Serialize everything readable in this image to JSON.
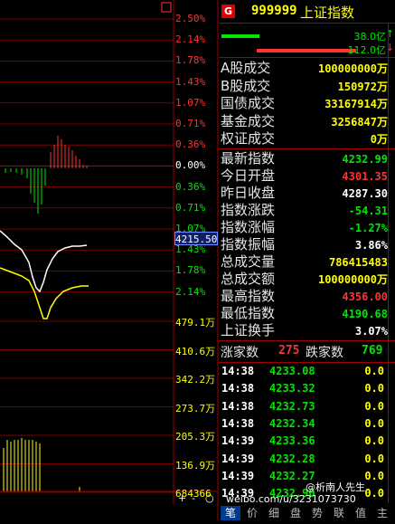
{
  "axis_percent": [
    "2.50%",
    "2.14%",
    "1.78%",
    "1.43%",
    "1.07%",
    "0.71%",
    "0.36%",
    "0.00%",
    "0.36%",
    "0.71%",
    "1.07%",
    "1.43%",
    "1.78%",
    "2.14%"
  ],
  "axis_volume": [
    "479.1万",
    "410.6万",
    "342.2万",
    "273.7万",
    "205.3万",
    "136.9万",
    "684366"
  ],
  "crosshair_value": "4215.50",
  "bottom_buttons": {
    "plus": "+",
    "minus": "-",
    "circle": "○"
  },
  "header": {
    "badge": "G",
    "code": "999999",
    "name": "上证指数"
  },
  "bars": {
    "up_label": "38.0亿",
    "down_label": "112.0亿",
    "up_arrow": "↑",
    "down_arrow": "↓"
  },
  "turnover": [
    {
      "label": "A股成交",
      "value": "100000000万"
    },
    {
      "label": "B股成交",
      "value": "150972万"
    },
    {
      "label": "国债成交",
      "value": "33167914万"
    },
    {
      "label": "基金成交",
      "value": "3256847万"
    },
    {
      "label": "权证成交",
      "value": "0万"
    }
  ],
  "quote": [
    {
      "label": "最新指数",
      "value": "4232.99",
      "color": "green"
    },
    {
      "label": "今日开盘",
      "value": "4301.35",
      "color": "red"
    },
    {
      "label": "昨日收盘",
      "value": "4287.30",
      "color": "white"
    },
    {
      "label": "指数涨跌",
      "value": "-54.31",
      "color": "green"
    },
    {
      "label": "指数涨幅",
      "value": "-1.27%",
      "color": "green"
    },
    {
      "label": "指数振幅",
      "value": "3.86%",
      "color": "white"
    },
    {
      "label": "总成交量",
      "value": "786415483",
      "color": "yellow"
    },
    {
      "label": "总成交额",
      "value": "100000000万",
      "color": "yellow"
    },
    {
      "label": "最高指数",
      "value": "4356.00",
      "color": "red"
    },
    {
      "label": "最低指数",
      "value": "4190.68",
      "color": "green"
    },
    {
      "label": "上证换手",
      "value": "3.07%",
      "color": "white"
    }
  ],
  "breadth": {
    "up_label": "涨家数",
    "up_value": "275",
    "down_label": "跌家数",
    "down_value": "769"
  },
  "trades": [
    {
      "time": "14:38",
      "price": "4233.08",
      "vol": "0.0"
    },
    {
      "time": "14:38",
      "price": "4233.32",
      "vol": "0.0"
    },
    {
      "time": "14:38",
      "price": "4232.73",
      "vol": "0.0"
    },
    {
      "time": "14:38",
      "price": "4232.34",
      "vol": "0.0"
    },
    {
      "time": "14:39",
      "price": "4233.36",
      "vol": "0.0"
    },
    {
      "time": "14:39",
      "price": "4232.28",
      "vol": "0.0"
    },
    {
      "time": "14:39",
      "price": "4232.27",
      "vol": "0.0"
    },
    {
      "time": "14:39",
      "price": "4232.90",
      "vol": "0.0"
    }
  ],
  "tabs": [
    "笔",
    "价",
    "细",
    "盘",
    "势",
    "联",
    "值",
    "主"
  ],
  "watermark": "weibo.com/u/3231073730",
  "watermark_user": "@析南人先生",
  "colors": {
    "up": "#ff3232",
    "down": "#00e600",
    "grid": "#a00000",
    "bg": "#000000"
  }
}
